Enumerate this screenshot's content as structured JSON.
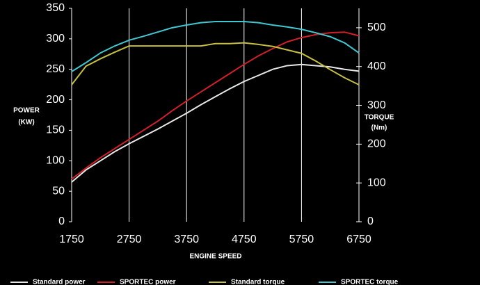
{
  "chart_data": {
    "type": "line",
    "xlabel": "ENGINE SPEED",
    "ylabel": [
      "POWER",
      "(KW)"
    ],
    "y2label": [
      "TORQUE",
      "(Nm)"
    ],
    "x": [
      1750,
      2000,
      2250,
      2500,
      2750,
      3000,
      3250,
      3500,
      3750,
      4000,
      4250,
      4500,
      4750,
      5000,
      5250,
      5500,
      5750,
      6000,
      6250,
      6500,
      6750
    ],
    "xlim": [
      1750,
      6750
    ],
    "xticks": [
      1750,
      2750,
      3750,
      4750,
      5750,
      6750
    ],
    "ylim": [
      0,
      350
    ],
    "yticks": [
      0,
      50,
      100,
      150,
      200,
      250,
      300,
      350
    ],
    "y2lim": [
      0,
      550
    ],
    "y2ticks": [
      0,
      100,
      200,
      300,
      400,
      500
    ],
    "grid": "x",
    "legend": "bottom",
    "series": [
      {
        "name": "Standard power",
        "color": "#e8e8e8",
        "values": [
          65,
          85,
          100,
          115,
          128,
          140,
          152,
          165,
          178,
          192,
          205,
          218,
          230,
          240,
          250,
          256,
          258,
          256,
          254,
          250,
          247
        ]
      },
      {
        "name": "SPORTEC power",
        "color": "#d0202a",
        "values": [
          70,
          88,
          105,
          120,
          135,
          150,
          165,
          182,
          198,
          213,
          228,
          243,
          258,
          272,
          284,
          295,
          302,
          307,
          310,
          311,
          305
        ]
      },
      {
        "name": "Standard torque",
        "color": "#c8c040",
        "axis": "y2",
        "values": [
          353,
          401,
          420,
          437,
          453,
          453,
          453,
          453,
          453,
          453,
          459,
          459,
          461,
          457,
          452,
          443,
          434,
          414,
          392,
          371,
          353
        ]
      },
      {
        "name": "SPORTEC torque",
        "color": "#40c8d0",
        "axis": "y2",
        "values": [
          387,
          410,
          435,
          453,
          468,
          478,
          489,
          500,
          507,
          513,
          516,
          516,
          516,
          513,
          507,
          502,
          496,
          487,
          477,
          461,
          435
        ]
      }
    ]
  }
}
